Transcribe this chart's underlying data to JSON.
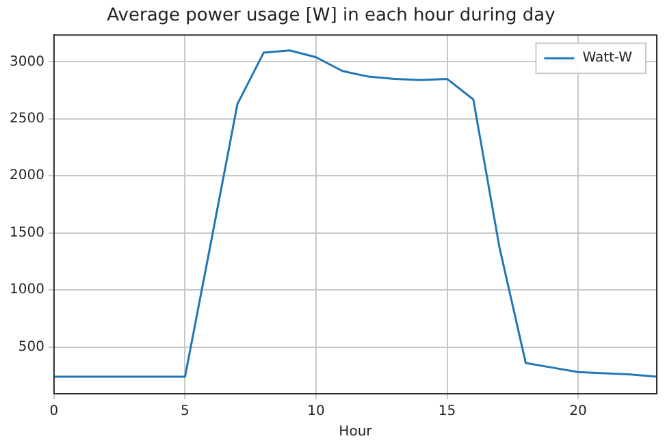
{
  "chart_data": {
    "type": "line",
    "title": "Average power usage [W] in each hour during day",
    "xlabel": "Hour",
    "x": [
      0,
      1,
      2,
      3,
      4,
      5,
      6,
      7,
      8,
      9,
      10,
      11,
      12,
      13,
      14,
      15,
      16,
      17,
      18,
      19,
      20,
      21,
      22,
      23
    ],
    "series": [
      {
        "name": "Watt-W",
        "color": "#1f77b4",
        "values": [
          240,
          240,
          240,
          240,
          240,
          240,
          1430,
          2630,
          3080,
          3100,
          3040,
          2920,
          2870,
          2850,
          2840,
          2850,
          2670,
          1370,
          360,
          320,
          280,
          270,
          260,
          240
        ]
      }
    ],
    "xlim": [
      0,
      23
    ],
    "xticks": [
      0,
      5,
      10,
      15,
      20
    ],
    "ylim": [
      90,
      3235
    ],
    "yticks": [
      500,
      1000,
      1500,
      2000,
      2500,
      3000
    ],
    "grid": true,
    "legend": "top right",
    "marker": "none",
    "line_style": "solid"
  }
}
